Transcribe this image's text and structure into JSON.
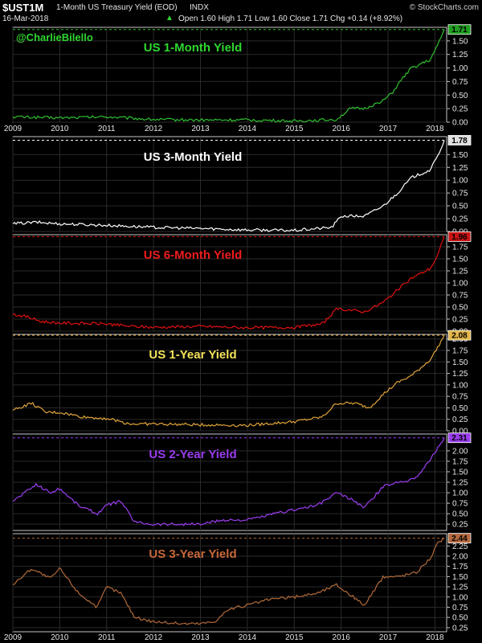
{
  "header": {
    "symbol": "$UST1M",
    "description": "1-Month US Treasury Yield (EOD)",
    "exchange": "INDX",
    "watermark": "© StockCharts.com",
    "date": "16-Mar-2018",
    "quote": "Open 1.60  High 1.71  Low 1.60  Close 1.71  Chg +0.14 (+8.92%)",
    "quote_arrow": "▲"
  },
  "handle": "@CharlieBilello",
  "colors": {
    "background": "#000000",
    "panel_border": "#c8c8c8",
    "grid": "#2b2b2b"
  },
  "chart_data": [
    {
      "type": "line",
      "title": "US 1-Month Yield",
      "color": "#2fbf2f",
      "title_color": "#2fd62f",
      "x": [
        2009.0,
        2010.0,
        2011.0,
        2012.0,
        2013.0,
        2014.0,
        2015.0,
        2015.9,
        2016.2,
        2016.5,
        2016.9,
        2017.1,
        2017.3,
        2017.5,
        2017.9,
        2018.05,
        2018.2
      ],
      "y": [
        0.1,
        0.08,
        0.1,
        0.05,
        0.04,
        0.04,
        0.02,
        0.05,
        0.25,
        0.25,
        0.4,
        0.55,
        0.8,
        1.0,
        1.15,
        1.4,
        1.71
      ],
      "x_ticks": [
        "2009",
        "2010",
        "2011",
        "2012",
        "2013",
        "2014",
        "2015",
        "2016",
        "2017",
        "2018"
      ],
      "y_ticks": [
        "0.00",
        "0.25",
        "0.50",
        "0.75",
        "1.00",
        "1.25",
        "1.50"
      ],
      "ylim": [
        0,
        1.75
      ],
      "last_value": "1.71",
      "last_box_color": "#1f9d1f"
    },
    {
      "type": "line",
      "title": "US 3-Month Yield",
      "color": "#ffffff",
      "title_color": "#ffffff",
      "x": [
        2009.0,
        2009.5,
        2010.0,
        2011.0,
        2012.0,
        2013.0,
        2014.0,
        2015.0,
        2015.8,
        2016.0,
        2016.5,
        2016.9,
        2017.2,
        2017.5,
        2017.9,
        2018.05,
        2018.2
      ],
      "y": [
        0.15,
        0.18,
        0.15,
        0.12,
        0.08,
        0.06,
        0.03,
        0.02,
        0.08,
        0.3,
        0.3,
        0.5,
        0.75,
        1.05,
        1.2,
        1.45,
        1.78
      ],
      "y_ticks": [
        "0.00",
        "0.25",
        "0.50",
        "0.75",
        "1.00",
        "1.25",
        "1.50"
      ],
      "ylim": [
        0,
        1.85
      ],
      "last_value": "1.78",
      "last_box_color": "#e0e0e0"
    },
    {
      "type": "line",
      "title": "US 6-Month Yield",
      "color": "#e01010",
      "title_color": "#ee1c1c",
      "x": [
        2009.0,
        2009.3,
        2009.6,
        2010.0,
        2011.0,
        2011.5,
        2012.0,
        2013.0,
        2014.0,
        2015.0,
        2015.6,
        2015.9,
        2016.1,
        2016.5,
        2016.9,
        2017.2,
        2017.5,
        2017.9,
        2018.05,
        2018.2
      ],
      "y": [
        0.35,
        0.3,
        0.2,
        0.17,
        0.15,
        0.1,
        0.08,
        0.1,
        0.07,
        0.08,
        0.15,
        0.45,
        0.45,
        0.4,
        0.6,
        0.85,
        1.1,
        1.3,
        1.55,
        1.96
      ],
      "y_ticks": [
        "0.00",
        "0.25",
        "0.50",
        "0.75",
        "1.00",
        "1.25",
        "1.50",
        "1.75"
      ],
      "ylim": [
        0,
        2.0
      ],
      "last_value": "1.96",
      "last_box_color": "#c81414"
    },
    {
      "type": "line",
      "title": "US 1-Year Yield",
      "color": "#e2a53a",
      "title_color": "#f2e25a",
      "x": [
        2009.0,
        2009.4,
        2009.7,
        2010.0,
        2010.5,
        2011.0,
        2011.5,
        2012.0,
        2013.0,
        2014.0,
        2015.0,
        2015.6,
        2015.9,
        2016.3,
        2016.6,
        2016.9,
        2017.2,
        2017.5,
        2017.9,
        2018.05,
        2018.2
      ],
      "y": [
        0.45,
        0.6,
        0.4,
        0.4,
        0.3,
        0.27,
        0.15,
        0.15,
        0.13,
        0.12,
        0.2,
        0.3,
        0.6,
        0.6,
        0.5,
        0.8,
        1.05,
        1.2,
        1.55,
        1.8,
        2.08
      ],
      "y_ticks": [
        "0.00",
        "0.25",
        "0.50",
        "0.75",
        "1.00",
        "1.25",
        "1.50",
        "1.75",
        "2.00"
      ],
      "ylim": [
        0,
        2.1
      ],
      "last_value": "2.08",
      "last_box_color": "#e2b54a"
    },
    {
      "type": "line",
      "title": "US 2-Year Yield",
      "color": "#9b3df0",
      "title_color": "#9b3df0",
      "x": [
        2009.0,
        2009.5,
        2009.8,
        2010.0,
        2010.4,
        2010.8,
        2011.0,
        2011.3,
        2011.6,
        2012.0,
        2013.0,
        2013.5,
        2014.0,
        2014.6,
        2015.0,
        2015.5,
        2015.9,
        2016.2,
        2016.5,
        2016.9,
        2017.2,
        2017.6,
        2017.9,
        2018.05,
        2018.2
      ],
      "y": [
        0.8,
        1.2,
        1.0,
        1.1,
        0.7,
        0.5,
        0.7,
        0.8,
        0.3,
        0.25,
        0.25,
        0.35,
        0.35,
        0.5,
        0.6,
        0.7,
        1.0,
        0.85,
        0.65,
        1.15,
        1.25,
        1.35,
        1.8,
        2.05,
        2.31
      ],
      "y_ticks": [
        "0.25",
        "0.50",
        "0.75",
        "1.00",
        "1.25",
        "1.50",
        "1.75",
        "2.00"
      ],
      "ylim": [
        0.1,
        2.4
      ],
      "last_value": "2.31",
      "last_box_color": "#9b3df0"
    },
    {
      "type": "line",
      "title": "US 3-Year Yield",
      "color": "#b26a3a",
      "title_color": "#c8683a",
      "x": [
        2009.0,
        2009.4,
        2009.8,
        2010.0,
        2010.4,
        2010.8,
        2011.0,
        2011.3,
        2011.6,
        2012.0,
        2012.6,
        2013.0,
        2013.3,
        2013.6,
        2014.0,
        2014.5,
        2015.0,
        2015.5,
        2015.9,
        2016.2,
        2016.5,
        2016.9,
        2017.2,
        2017.6,
        2017.9,
        2018.05,
        2018.2
      ],
      "y": [
        1.3,
        1.7,
        1.45,
        1.7,
        1.1,
        0.75,
        1.25,
        1.1,
        0.5,
        0.4,
        0.35,
        0.35,
        0.4,
        0.7,
        0.8,
        0.95,
        1.0,
        1.1,
        1.3,
        1.05,
        0.8,
        1.5,
        1.5,
        1.6,
        1.95,
        2.3,
        2.44
      ],
      "x_ticks": [
        "2009",
        "2010",
        "2011",
        "2012",
        "2013",
        "2014",
        "2015",
        "2016",
        "2017",
        "2018"
      ],
      "y_ticks": [
        "0.25",
        "0.50",
        "0.75",
        "1.00",
        "1.25",
        "1.50",
        "1.75",
        "2.00",
        "2.25"
      ],
      "ylim": [
        0.15,
        2.55
      ],
      "last_value": "2.44",
      "last_box_color": "#b56a40"
    }
  ]
}
